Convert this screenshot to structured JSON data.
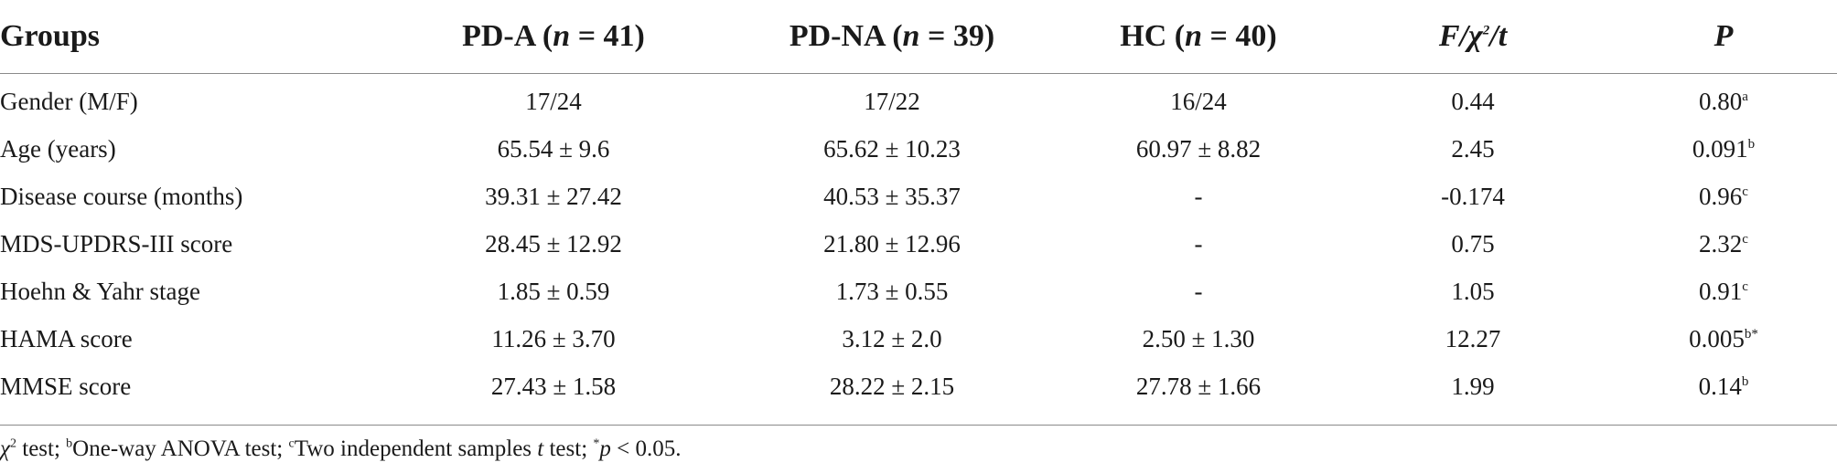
{
  "table": {
    "header": {
      "groups": "Groups",
      "pda": {
        "name": "PD-A (",
        "n": "n",
        "eq": " = 41)"
      },
      "pdna": {
        "name": "PD-NA (",
        "n": "n",
        "eq": " = 39)"
      },
      "hc": {
        "name": "HC (",
        "n": "n",
        "eq": " = 40)"
      },
      "stat": {
        "f": "F",
        "slash1": "/",
        "chi": "χ",
        "sq": "2",
        "slash2": "/",
        "t": "t"
      },
      "p": "P"
    },
    "rows": [
      {
        "label": "Gender (M/F)",
        "pda": "17/24",
        "pdna": "17/22",
        "hc": "16/24",
        "stat": "0.44",
        "p": "0.80",
        "p_sup": "a"
      },
      {
        "label": "Age (years)",
        "pda": "65.54 ± 9.6",
        "pdna": "65.62 ± 10.23",
        "hc": "60.97 ± 8.82",
        "stat": "2.45",
        "p": "0.091",
        "p_sup": "b"
      },
      {
        "label": "Disease course (months)",
        "pda": "39.31 ± 27.42",
        "pdna": "40.53 ± 35.37",
        "hc": "-",
        "stat": "-0.174",
        "p": "0.96",
        "p_sup": "c"
      },
      {
        "label": "MDS-UPDRS-III score",
        "pda": "28.45 ± 12.92",
        "pdna": "21.80 ± 12.96",
        "hc": "-",
        "stat": "0.75",
        "p": "2.32",
        "p_sup": "c"
      },
      {
        "label": "Hoehn & Yahr stage",
        "pda": "1.85 ± 0.59",
        "pdna": "1.73 ± 0.55",
        "hc": "-",
        "stat": "1.05",
        "p": "0.91",
        "p_sup": "c"
      },
      {
        "label": "HAMA score",
        "pda": "11.26 ± 3.70",
        "pdna": "3.12 ± 2.0",
        "hc": "2.50 ± 1.30",
        "stat": "12.27",
        "p": "0.005",
        "p_sup": "b*"
      },
      {
        "label": "MMSE score",
        "pda": "27.43 ± 1.58",
        "pdna": "28.22 ± 2.15",
        "hc": "27.78 ± 1.66",
        "stat": "1.99",
        "p": "0.14",
        "p_sup": "b"
      }
    ]
  },
  "footnote": {
    "chi": "χ",
    "chi_sup": "2",
    "part1": " test; ",
    "b_sup": "b",
    "part2": "One-way ANOVA test; ",
    "c_sup": "c",
    "part3": "Two independent samples ",
    "t": "t",
    "part4": " test; ",
    "star_sup": "*",
    "p": "p",
    "part5": " < 0.05."
  }
}
